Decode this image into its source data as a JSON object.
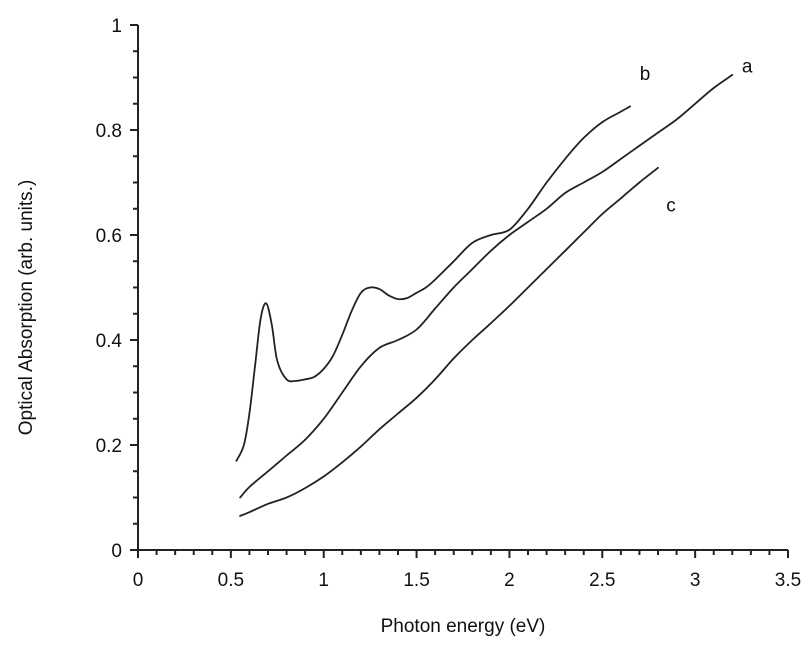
{
  "chart_data": {
    "type": "line",
    "title": "",
    "xlabel": "Photon energy (eV)",
    "ylabel": "Optical Absorption (arb. units.)",
    "xlim": [
      0,
      3.5
    ],
    "ylim": [
      0,
      1
    ],
    "xticks": [
      {
        "value": 0,
        "label": "0"
      },
      {
        "value": 0.5,
        "label": "0.5"
      },
      {
        "value": 1,
        "label": "1"
      },
      {
        "value": 1.5,
        "label": "1.5"
      },
      {
        "value": 2,
        "label": "2"
      },
      {
        "value": 2.5,
        "label": "2.5"
      },
      {
        "value": 3,
        "label": "3"
      },
      {
        "value": 3.5,
        "label": "3.5"
      }
    ],
    "yticks": [
      {
        "value": 0,
        "label": "0"
      },
      {
        "value": 0.2,
        "label": "0.2"
      },
      {
        "value": 0.4,
        "label": "0.4"
      },
      {
        "value": 0.6,
        "label": "0.6"
      },
      {
        "value": 0.8,
        "label": "0.8"
      },
      {
        "value": 1,
        "label": "1"
      }
    ],
    "grid": false,
    "legend": "none",
    "series": [
      {
        "name": "a",
        "x": [
          0.55,
          0.6,
          0.7,
          0.8,
          0.9,
          1.0,
          1.1,
          1.2,
          1.3,
          1.4,
          1.5,
          1.6,
          1.7,
          1.8,
          1.9,
          2.0,
          2.1,
          2.2,
          2.3,
          2.4,
          2.5,
          2.6,
          2.7,
          2.8,
          2.9,
          3.0,
          3.1,
          3.2
        ],
        "y": [
          0.1,
          0.12,
          0.15,
          0.18,
          0.21,
          0.25,
          0.3,
          0.35,
          0.385,
          0.4,
          0.42,
          0.46,
          0.5,
          0.535,
          0.57,
          0.6,
          0.625,
          0.65,
          0.68,
          0.7,
          0.72,
          0.745,
          0.77,
          0.795,
          0.82,
          0.85,
          0.88,
          0.905
        ]
      },
      {
        "name": "b",
        "x": [
          0.53,
          0.57,
          0.6,
          0.63,
          0.66,
          0.69,
          0.72,
          0.75,
          0.8,
          0.85,
          0.9,
          0.95,
          1.0,
          1.05,
          1.1,
          1.15,
          1.2,
          1.25,
          1.3,
          1.35,
          1.4,
          1.45,
          1.5,
          1.55,
          1.6,
          1.7,
          1.8,
          1.9,
          2.0,
          2.1,
          2.2,
          2.3,
          2.4,
          2.5,
          2.6,
          2.65
        ],
        "y": [
          0.17,
          0.2,
          0.26,
          0.35,
          0.44,
          0.47,
          0.43,
          0.36,
          0.325,
          0.322,
          0.325,
          0.33,
          0.345,
          0.37,
          0.41,
          0.455,
          0.49,
          0.5,
          0.497,
          0.485,
          0.478,
          0.48,
          0.49,
          0.5,
          0.515,
          0.55,
          0.585,
          0.6,
          0.61,
          0.65,
          0.7,
          0.745,
          0.785,
          0.815,
          0.835,
          0.845
        ]
      },
      {
        "name": "c",
        "x": [
          0.55,
          0.6,
          0.7,
          0.8,
          0.9,
          1.0,
          1.1,
          1.2,
          1.3,
          1.4,
          1.5,
          1.6,
          1.7,
          1.8,
          1.9,
          2.0,
          2.1,
          2.2,
          2.3,
          2.4,
          2.5,
          2.6,
          2.7,
          2.8
        ],
        "y": [
          0.065,
          0.072,
          0.088,
          0.1,
          0.118,
          0.14,
          0.167,
          0.197,
          0.23,
          0.26,
          0.29,
          0.325,
          0.365,
          0.4,
          0.432,
          0.465,
          0.5,
          0.535,
          0.57,
          0.605,
          0.64,
          0.67,
          0.7,
          0.728
        ]
      }
    ],
    "annotations": [
      {
        "text": "a",
        "x": 3.28,
        "y": 0.91
      },
      {
        "text": "b",
        "x": 2.73,
        "y": 0.895
      },
      {
        "text": "c",
        "x": 2.87,
        "y": 0.645
      }
    ]
  }
}
